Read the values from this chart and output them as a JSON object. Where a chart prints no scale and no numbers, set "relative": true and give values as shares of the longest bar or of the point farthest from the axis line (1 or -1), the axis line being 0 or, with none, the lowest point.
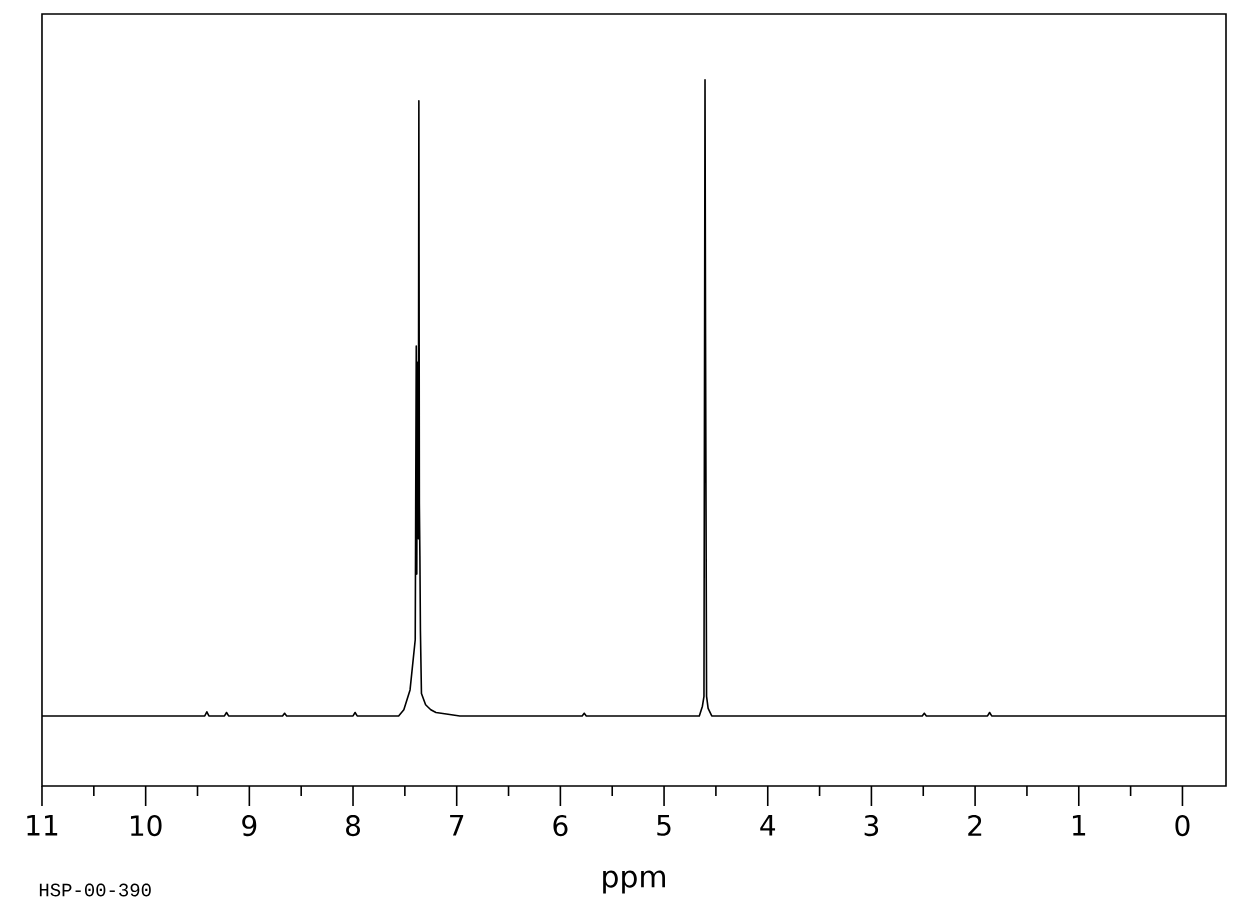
{
  "chart_data": {
    "type": "line",
    "relative": true,
    "xlabel": "ppm",
    "annotations": [
      "HSP-00-390"
    ],
    "color": "#000000",
    "line_style": "solid",
    "xlim": [
      11,
      -0.42
    ],
    "xticks": [
      11,
      {
        "value": 10.5,
        "label": null
      },
      10,
      {
        "value": 9.5,
        "label": null
      },
      9,
      {
        "value": 8.5,
        "label": null
      },
      8,
      {
        "value": 7.5,
        "label": null
      },
      7,
      {
        "value": 6.5,
        "label": null
      },
      6,
      {
        "value": 5.5,
        "label": null
      },
      5,
      {
        "value": 4.5,
        "label": null
      },
      4,
      {
        "value": 3.5,
        "label": null
      },
      3,
      {
        "value": 2.5,
        "label": null
      },
      2,
      {
        "value": 1.5,
        "label": null
      },
      1,
      {
        "value": 0.5,
        "label": null
      },
      0
    ],
    "x": [
      11.0,
      9.43,
      9.41,
      9.39,
      9.24,
      9.22,
      9.2,
      8.68,
      8.66,
      8.64,
      8.0,
      7.98,
      7.96,
      7.56,
      7.51,
      7.45,
      7.4,
      7.39,
      7.385,
      7.38,
      7.37,
      7.365,
      7.36,
      7.355,
      7.35,
      7.34,
      7.3,
      7.25,
      7.2,
      7.1,
      6.97,
      5.79,
      5.77,
      5.75,
      4.66,
      4.63,
      4.615,
      4.605,
      4.6,
      4.59,
      4.575,
      4.54,
      2.51,
      2.49,
      2.47,
      1.88,
      1.86,
      1.84,
      -0.42
    ],
    "values": [
      0.0992,
      0.0992,
      0.105,
      0.0992,
      0.0992,
      0.104,
      0.0992,
      0.0992,
      0.103,
      0.0992,
      0.0992,
      0.104,
      0.0992,
      0.0992,
      0.108,
      0.136,
      0.207,
      0.623,
      0.3,
      0.6,
      0.35,
      0.97,
      0.4,
      0.326,
      0.22,
      0.131,
      0.115,
      0.108,
      0.104,
      0.102,
      0.0992,
      0.0992,
      0.103,
      0.0992,
      0.0992,
      0.113,
      0.127,
      1.0,
      0.641,
      0.127,
      0.11,
      0.0992,
      0.0992,
      0.103,
      0.0992,
      0.0992,
      0.104,
      0.0992,
      0.0992
    ]
  }
}
